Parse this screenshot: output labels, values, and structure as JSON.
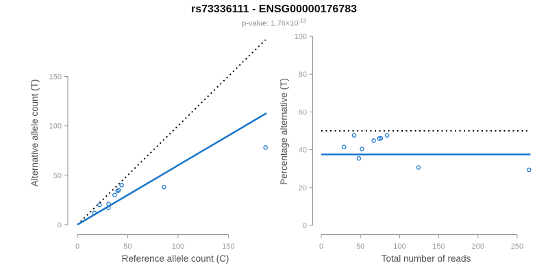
{
  "chart_data": {
    "type": "scatter",
    "title": "rs73336111 - ENSG00000176783",
    "subtitle": {
      "text": "p-value: 1.76×10^-13",
      "base": "p-value: 1.76×10",
      "exponent": "-13"
    },
    "layout": {
      "grid": false,
      "legend": "none",
      "panels": 2,
      "background": "#ffffff"
    },
    "style": {
      "point_color": "#1874CD",
      "line_color": "#1874CD",
      "dotted_line_color": "#000000",
      "axis_color": "#8f8f8f",
      "tick_label_color": "#999999",
      "axis_title_color": "#4d4d4d",
      "title_color": "#111111",
      "subtitle_color": "#8c8c8c"
    },
    "plots": [
      {
        "name": "allele-counts",
        "xlabel": "Reference allele count (C)",
        "ylabel": "Alternative allele count (T)",
        "xticks": [
          0,
          50,
          100,
          150
        ],
        "yticks": [
          0,
          50,
          100,
          150
        ],
        "xlim": [
          0,
          190
        ],
        "ylim": [
          0,
          195
        ],
        "lines": [
          {
            "name": "identity-line",
            "type": "abline",
            "intercept": 0,
            "slope": 1,
            "x_range": [
              0,
              187
            ],
            "style": "dotted",
            "color": "#000000"
          },
          {
            "name": "fit-line",
            "type": "abline",
            "intercept": 0,
            "slope": 0.6,
            "x_range": [
              0,
              188
            ],
            "style": "solid",
            "color": "#1874CD"
          }
        ],
        "points": [
          [
            17,
            12
          ],
          [
            22,
            20
          ],
          [
            31,
            17
          ],
          [
            31,
            21
          ],
          [
            37,
            30
          ],
          [
            40,
            34
          ],
          [
            41,
            35
          ],
          [
            44,
            40
          ],
          [
            86,
            38
          ],
          [
            187,
            78
          ]
        ]
      },
      {
        "name": "percentage-alternative",
        "xlabel": "Total number of reads",
        "ylabel": "Percentage alternative (T)",
        "xticks": [
          0,
          50,
          100,
          150,
          200,
          250
        ],
        "yticks": [
          0,
          20,
          40,
          60,
          80,
          100
        ],
        "xlim": [
          0,
          268
        ],
        "ylim": [
          0,
          100
        ],
        "lines": [
          {
            "name": "expected-50pct-line",
            "type": "hline",
            "y": 50,
            "x_range": [
              0,
              263
            ],
            "style": "dotted",
            "color": "#000000"
          },
          {
            "name": "observed-ratio-line",
            "type": "hline",
            "y": 37.5,
            "x_range": [
              0,
              267
            ],
            "style": "solid",
            "color": "#1874CD"
          }
        ],
        "points": [
          [
            29,
            41.4
          ],
          [
            42,
            47.6
          ],
          [
            48,
            35.4
          ],
          [
            52,
            40.4
          ],
          [
            67,
            44.8
          ],
          [
            74,
            45.9
          ],
          [
            76,
            46.1
          ],
          [
            84,
            47.6
          ],
          [
            124,
            30.6
          ],
          [
            265,
            29.4
          ]
        ]
      }
    ],
    "point_style": {
      "shape": "open-circle",
      "radius": 2.6
    }
  }
}
